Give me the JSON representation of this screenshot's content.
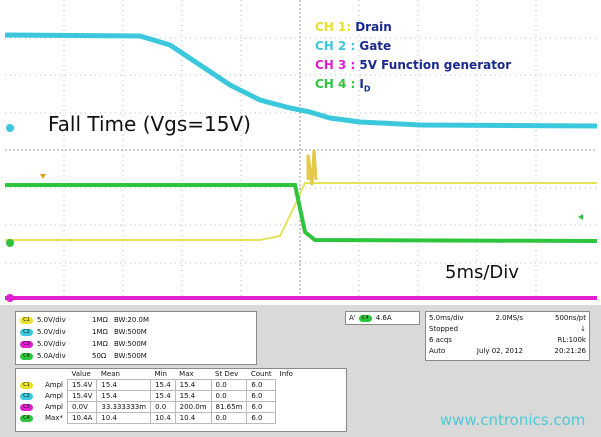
{
  "legend": [
    {
      "channel": "CH 1:",
      "name": "Drain"
    },
    {
      "channel": "CH 2 :",
      "name": "Gate"
    },
    {
      "channel": "CH 3 :",
      "name": "5V Function generator"
    },
    {
      "channel": "CH 4 :",
      "name": "I",
      "subscript": "D"
    }
  ],
  "annotations": {
    "title": "Fall Time (Vgs=15V)",
    "timebase": "5ms/Div"
  },
  "channel_settings": [
    {
      "badge": "C1",
      "scale": "5.0V/div",
      "impedance": "1MΩ",
      "bandwidth": "BW:20.0M"
    },
    {
      "badge": "C2",
      "scale": "5.0V/div",
      "impedance": "1MΩ",
      "bandwidth": "BW:500M"
    },
    {
      "badge": "C3",
      "scale": "5.0V/div",
      "impedance": "1MΩ",
      "bandwidth": "BW:500M"
    },
    {
      "badge": "C4",
      "scale": "5.0A/div",
      "impedance": "50Ω",
      "bandwidth": "BW:500M"
    }
  ],
  "trigger": {
    "label": "A'",
    "source": "C4",
    "level": "4.6A"
  },
  "acquisition": [
    [
      "5.0ms/div",
      "2.0MS/s",
      "500ns/pt"
    ],
    [
      "Stopped",
      "↓"
    ],
    [
      "6 acqs",
      "RL:100k"
    ],
    [
      "Auto",
      "July 02, 2012",
      "20:21:26"
    ]
  ],
  "measurements": {
    "headers": [
      "Value",
      "Mean",
      "Min",
      "Max",
      "St Dev",
      "Count",
      "Info"
    ],
    "rows": [
      {
        "badge": "C1",
        "name": "Ampl",
        "cells": [
          "15.4V",
          "15.4",
          "15.4",
          "15.4",
          "0.0",
          "6.0"
        ]
      },
      {
        "badge": "C2",
        "name": "Ampl",
        "cells": [
          "15.4V",
          "15.4",
          "15.4",
          "15.4",
          "0.0",
          "6.0"
        ]
      },
      {
        "badge": "C3",
        "name": "Ampl",
        "cells": [
          "0.0V",
          "33.333333m",
          "0.0",
          "200.0m",
          "81.65m",
          "6.0"
        ]
      },
      {
        "badge": "C4",
        "name": "Max*",
        "cells": [
          "10.4A",
          "10.4",
          "10.4",
          "10.4",
          "0.0",
          "6.0"
        ]
      }
    ]
  },
  "watermark": "www.cntronics.com"
}
